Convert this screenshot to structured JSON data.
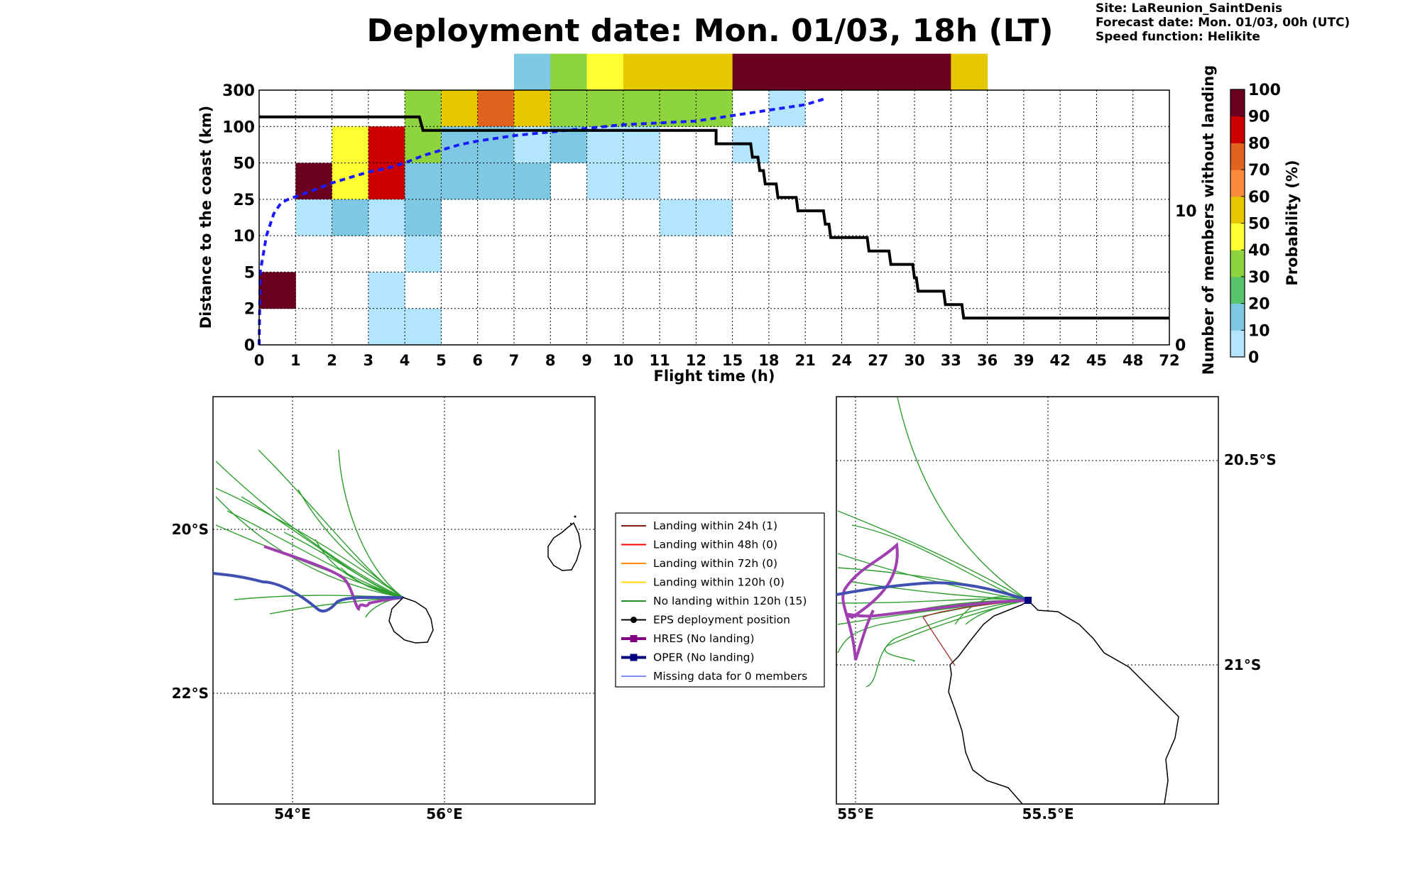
{
  "title": "Deployment date: Mon. 01/03, 18h (LT)",
  "meta": {
    "site": "Site: LaReunion_SaintDenis",
    "forecast": "Forecast date: Mon. 01/03, 00h (UTC)",
    "speed": "Speed function: Helikite"
  },
  "chart_data": [
    {
      "type": "heatmap",
      "xlabel": "Flight time (h)",
      "ylabel": "Distance to the coast (km)",
      "y2label": "Number of members without landing",
      "colorbar_label": "Probability (%)",
      "x_ticks": [
        "0",
        "1",
        "2",
        "3",
        "4",
        "5",
        "6",
        "7",
        "8",
        "9",
        "10",
        "11",
        "12",
        "15",
        "18",
        "21",
        "24",
        "27",
        "30",
        "33",
        "36",
        "39",
        "42",
        "45",
        "48",
        "72"
      ],
      "y_ticks": [
        "0",
        "2",
        "5",
        "10",
        "25",
        "50",
        "100",
        "300"
      ],
      "y2_ticks": [
        "0",
        "10"
      ],
      "y2_range": [
        0,
        19
      ],
      "colorbar_ticks": [
        "0",
        "10",
        "20",
        "30",
        "40",
        "50",
        "60",
        "70",
        "80",
        "90",
        "100"
      ],
      "colorbar_colors": [
        "#b3e5fc",
        "#7ec8e3",
        "#56c56e",
        "#8ed43e",
        "#ffff33",
        "#e6c800",
        "#fa8c3c",
        "#e0641e",
        "#cc0000",
        "#6b0020"
      ],
      "grid": true,
      "cells": [
        {
          "x": 0,
          "y": 1,
          "p": 95
        },
        {
          "x": 1,
          "y": 4,
          "p": 95
        },
        {
          "x": 1,
          "y": 3,
          "p": 5
        },
        {
          "x": 2,
          "y": 4,
          "p": 45
        },
        {
          "x": 2,
          "y": 5,
          "p": 45
        },
        {
          "x": 2,
          "y": 3,
          "p": 15
        },
        {
          "x": 3,
          "y": 5,
          "p": 85
        },
        {
          "x": 3,
          "y": 4,
          "p": 85
        },
        {
          "x": 3,
          "y": 3,
          "p": 5
        },
        {
          "x": 3,
          "y": 1,
          "p": 5
        },
        {
          "x": 3,
          "y": 0,
          "p": 5
        },
        {
          "x": 4,
          "y": 6,
          "p": 35
        },
        {
          "x": 4,
          "y": 5,
          "p": 35
        },
        {
          "x": 4,
          "y": 4,
          "p": 15
        },
        {
          "x": 4,
          "y": 3,
          "p": 15
        },
        {
          "x": 4,
          "y": 2,
          "p": 5
        },
        {
          "x": 4,
          "y": 0,
          "p": 5
        },
        {
          "x": 5,
          "y": 6,
          "p": 55
        },
        {
          "x": 5,
          "y": 5,
          "p": 15
        },
        {
          "x": 5,
          "y": 4,
          "p": 15
        },
        {
          "x": 6,
          "y": 6,
          "p": 75
        },
        {
          "x": 6,
          "y": 5,
          "p": 15
        },
        {
          "x": 6,
          "y": 4,
          "p": 15
        },
        {
          "x": 7,
          "y": 7,
          "p": 15
        },
        {
          "x": 7,
          "y": 6,
          "p": 55
        },
        {
          "x": 7,
          "y": 5,
          "p": 5
        },
        {
          "x": 7,
          "y": 4,
          "p": 15
        },
        {
          "x": 8,
          "y": 7,
          "p": 35
        },
        {
          "x": 8,
          "y": 6,
          "p": 35
        },
        {
          "x": 8,
          "y": 5,
          "p": 15
        },
        {
          "x": 9,
          "y": 7,
          "p": 45
        },
        {
          "x": 9,
          "y": 6,
          "p": 35
        },
        {
          "x": 9,
          "y": 5,
          "p": 5
        },
        {
          "x": 9,
          "y": 4,
          "p": 5
        },
        {
          "x": 10,
          "y": 7,
          "p": 55
        },
        {
          "x": 10,
          "y": 6,
          "p": 35
        },
        {
          "x": 10,
          "y": 5,
          "p": 5
        },
        {
          "x": 10,
          "y": 4,
          "p": 5
        },
        {
          "x": 11,
          "y": 7,
          "p": 55
        },
        {
          "x": 11,
          "y": 6,
          "p": 35
        },
        {
          "x": 11,
          "y": 3,
          "p": 5
        },
        {
          "x": 12,
          "y": 7,
          "p": 55
        },
        {
          "x": 12,
          "y": 6,
          "p": 35
        },
        {
          "x": 12,
          "y": 3,
          "p": 5
        },
        {
          "x": 13,
          "y": 7,
          "p": 95
        },
        {
          "x": 13,
          "y": 5,
          "p": 5
        },
        {
          "x": 14,
          "y": 7,
          "p": 95
        },
        {
          "x": 14,
          "y": 6,
          "p": 5
        },
        {
          "x": 15,
          "y": 7,
          "p": 95
        },
        {
          "x": 16,
          "y": 7,
          "p": 95
        },
        {
          "x": 17,
          "y": 7,
          "p": 95
        },
        {
          "x": 18,
          "y": 7,
          "p": 95
        },
        {
          "x": 19,
          "y": 7,
          "p": 55
        }
      ],
      "series": [
        {
          "name": "",
          "style": "dotted-blue",
          "points": [
            [
              0,
              0
            ],
            [
              0.03,
              2
            ],
            [
              0.2,
              3
            ],
            [
              0.4,
              3.6
            ],
            [
              0.6,
              3.9
            ],
            [
              0.8,
              4
            ],
            [
              1.5,
              4.25
            ],
            [
              2,
              4.45
            ],
            [
              2.5,
              4.6
            ],
            [
              3,
              4.75
            ],
            [
              3.5,
              4.85
            ],
            [
              4,
              5
            ],
            [
              4.5,
              5.2
            ],
            [
              5,
              5.35
            ],
            [
              5.5,
              5.5
            ],
            [
              6,
              5.6
            ],
            [
              7,
              5.75
            ],
            [
              8,
              5.85
            ],
            [
              9,
              5.95
            ],
            [
              10,
              6.05
            ],
            [
              11,
              6.1
            ],
            [
              12,
              6.15
            ],
            [
              13,
              6.3
            ],
            [
              14,
              6.45
            ],
            [
              15,
              6.6
            ],
            [
              15.5,
              6.75
            ]
          ]
        },
        {
          "name": "",
          "style": "step-black",
          "axis": "right",
          "points": [
            [
              0,
              17
            ],
            [
              4.4,
              17
            ],
            [
              4.5,
              16
            ],
            [
              12.55,
              16
            ],
            [
              12.55,
              15
            ],
            [
              13.5,
              15
            ],
            [
              13.55,
              14
            ],
            [
              13.7,
              14
            ],
            [
              13.75,
              13
            ],
            [
              13.85,
              13
            ],
            [
              13.9,
              12
            ],
            [
              14.2,
              12
            ],
            [
              14.25,
              11
            ],
            [
              14.75,
              11
            ],
            [
              14.8,
              10
            ],
            [
              15.5,
              10
            ],
            [
              15.55,
              9
            ],
            [
              15.65,
              9
            ],
            [
              15.7,
              8
            ],
            [
              16.7,
              8
            ],
            [
              16.75,
              7
            ],
            [
              17.3,
              7
            ],
            [
              17.35,
              6
            ],
            [
              17.95,
              6
            ],
            [
              18,
              5
            ],
            [
              18.05,
              5
            ],
            [
              18.1,
              4
            ],
            [
              18.8,
              4
            ],
            [
              18.85,
              3
            ],
            [
              19.3,
              3
            ],
            [
              19.35,
              2
            ],
            [
              25,
              2
            ]
          ]
        }
      ]
    },
    {
      "type": "map",
      "x_ticks": [
        "54°E",
        "56°E"
      ],
      "y_ticks": [
        "20°S",
        "22°S"
      ],
      "lon_range": [
        53,
        58
      ],
      "lat_range": [
        -23.5,
        -18.5
      ]
    },
    {
      "type": "map",
      "x_ticks": [
        "55°E",
        "55.5°E"
      ],
      "y_ticks": [
        "20.5°S",
        "21°S"
      ],
      "lon_range": [
        54.95,
        55.95
      ],
      "lat_range": [
        -21.35,
        -20.35
      ]
    }
  ],
  "legend": [
    {
      "label": "Landing within 24h (1)",
      "color": "#8b1a1a",
      "kind": "line"
    },
    {
      "label": "Landing within 48h (0)",
      "color": "#ff0000",
      "kind": "line"
    },
    {
      "label": "Landing within 72h (0)",
      "color": "#ff8c00",
      "kind": "line"
    },
    {
      "label": "Landing within 120h (0)",
      "color": "#ffd700",
      "kind": "line"
    },
    {
      "label": "No landing within 120h (15)",
      "color": "#228b22",
      "kind": "line"
    },
    {
      "label": "EPS deployment position",
      "color": "#000000",
      "kind": "dot"
    },
    {
      "label": "HRES (No landing)",
      "color": "#800080",
      "kind": "square-thick"
    },
    {
      "label": "OPER (No landing)",
      "color": "#000080",
      "kind": "square-thick"
    },
    {
      "label": "Missing data for 0 members",
      "color": "#3344ff",
      "kind": "thin"
    }
  ]
}
